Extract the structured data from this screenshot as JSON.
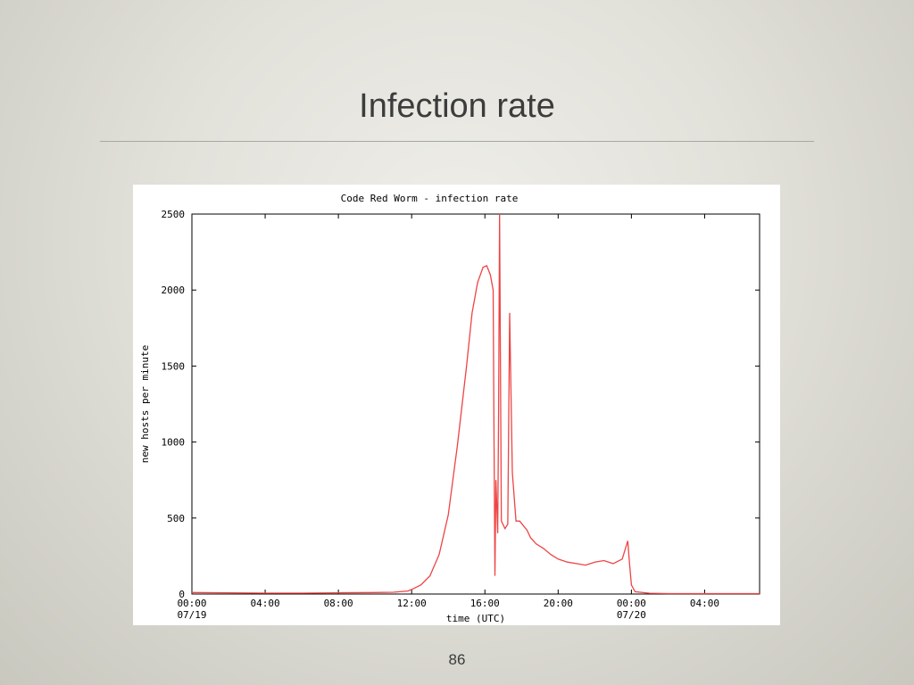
{
  "slide": {
    "title": "Infection rate",
    "page_number": "86"
  },
  "colors": {
    "series": "#ee4444",
    "axis": "#000000",
    "background_panel": "#ffffff"
  },
  "chart_data": {
    "type": "line",
    "title": "Code Red Worm - infection rate",
    "xlabel": "time (UTC)",
    "ylabel": "new hosts per minute",
    "xlim": [
      0,
      31
    ],
    "ylim": [
      0,
      2500
    ],
    "grid": false,
    "x_unit": "hours since 00:00 07/19",
    "x_ticks": [
      {
        "x": 0,
        "label": "00:00",
        "sublabel": "07/19"
      },
      {
        "x": 4,
        "label": "04:00",
        "sublabel": ""
      },
      {
        "x": 8,
        "label": "08:00",
        "sublabel": ""
      },
      {
        "x": 12,
        "label": "12:00",
        "sublabel": ""
      },
      {
        "x": 16,
        "label": "16:00",
        "sublabel": ""
      },
      {
        "x": 20,
        "label": "20:00",
        "sublabel": ""
      },
      {
        "x": 24,
        "label": "00:00",
        "sublabel": "07/20"
      },
      {
        "x": 28,
        "label": "04:00",
        "sublabel": ""
      }
    ],
    "y_ticks": [
      0,
      500,
      1000,
      1500,
      2000,
      2500
    ],
    "series": [
      {
        "x": [
          0,
          2,
          4,
          6,
          8,
          10,
          11,
          11.8,
          12,
          12.5,
          13,
          13.5,
          14,
          14.5,
          15,
          15.3,
          15.6,
          15.9,
          16.1,
          16.3,
          16.45,
          16.5,
          16.55,
          16.6,
          16.7,
          16.75,
          16.8,
          16.9,
          17.1,
          17.25,
          17.35,
          17.5,
          17.7,
          17.9,
          18.1,
          18.3,
          18.5,
          18.8,
          19.2,
          19.6,
          20,
          20.5,
          21,
          21.5,
          22,
          22.5,
          23,
          23.5,
          23.8,
          23.9,
          24,
          24.2,
          25,
          26,
          28,
          30,
          31
        ],
        "y": [
          10,
          8,
          6,
          6,
          8,
          10,
          12,
          20,
          30,
          60,
          120,
          260,
          520,
          980,
          1500,
          1850,
          2050,
          2150,
          2160,
          2100,
          2000,
          1000,
          120,
          750,
          400,
          1200,
          2500,
          480,
          430,
          460,
          1850,
          800,
          480,
          480,
          450,
          420,
          370,
          330,
          300,
          260,
          230,
          210,
          200,
          190,
          210,
          220,
          200,
          230,
          350,
          200,
          60,
          15,
          5,
          3,
          3,
          3,
          3
        ]
      }
    ]
  }
}
